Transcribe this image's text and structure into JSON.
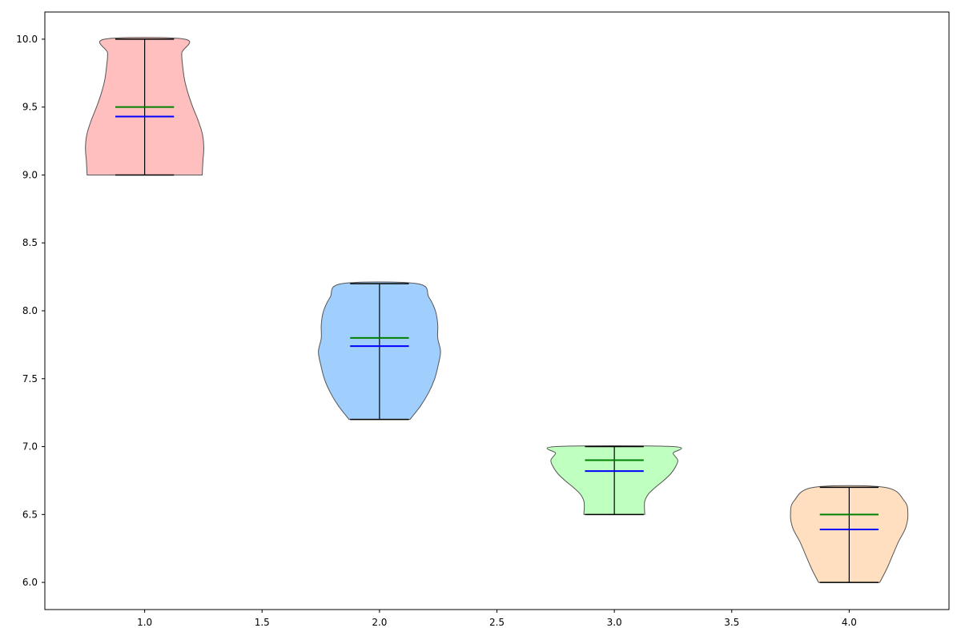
{
  "chart_data": {
    "type": "violin",
    "title": "",
    "xlabel": "",
    "ylabel": "",
    "xlim": [
      0.575,
      4.425
    ],
    "ylim": [
      5.8,
      10.2
    ],
    "grid": false,
    "legend": null,
    "x_ticks": [
      "1.0",
      "1.5",
      "2.0",
      "2.5",
      "3.0",
      "3.5",
      "4.0"
    ],
    "y_ticks": [
      "6.0",
      "6.5",
      "7.0",
      "7.5",
      "8.0",
      "8.5",
      "9.0",
      "9.5",
      "10.0"
    ],
    "cap_half_width": 0.125,
    "line_colors": {
      "extrema": "#000000",
      "median": "#008000",
      "mean": "#0000ff",
      "outline": "#555555"
    },
    "series": [
      {
        "position": 1,
        "color": "#ffbfbf",
        "min": 9.0,
        "max": 10.0,
        "median": 9.5,
        "mean": 9.43,
        "profile": [
          [
            9.0,
            0.245
          ],
          [
            9.1,
            0.248
          ],
          [
            9.2,
            0.252
          ],
          [
            9.3,
            0.246
          ],
          [
            9.4,
            0.228
          ],
          [
            9.5,
            0.205
          ],
          [
            9.6,
            0.185
          ],
          [
            9.7,
            0.17
          ],
          [
            9.8,
            0.162
          ],
          [
            9.9,
            0.158
          ],
          [
            10.0,
            0.17
          ]
        ]
      },
      {
        "position": 2,
        "color": "#a1cffd",
        "min": 7.2,
        "max": 8.2,
        "median": 7.8,
        "mean": 7.74,
        "profile": [
          [
            7.2,
            0.13
          ],
          [
            7.3,
            0.175
          ],
          [
            7.4,
            0.21
          ],
          [
            7.5,
            0.235
          ],
          [
            7.6,
            0.25
          ],
          [
            7.7,
            0.26
          ],
          [
            7.8,
            0.248
          ],
          [
            7.9,
            0.248
          ],
          [
            8.0,
            0.238
          ],
          [
            8.1,
            0.21
          ],
          [
            8.2,
            0.16
          ]
        ]
      },
      {
        "position": 3,
        "color": "#bfffbf",
        "min": 6.5,
        "max": 7.0,
        "median": 6.9,
        "mean": 6.82,
        "profile": [
          [
            6.5,
            0.13
          ],
          [
            6.55,
            0.128
          ],
          [
            6.6,
            0.13
          ],
          [
            6.65,
            0.145
          ],
          [
            6.7,
            0.175
          ],
          [
            6.75,
            0.21
          ],
          [
            6.8,
            0.24
          ],
          [
            6.85,
            0.26
          ],
          [
            6.9,
            0.27
          ],
          [
            6.95,
            0.25
          ],
          [
            7.0,
            0.25
          ]
        ]
      },
      {
        "position": 4,
        "color": "#ffdfbf",
        "min": 6.0,
        "max": 6.7,
        "median": 6.5,
        "mean": 6.39,
        "profile": [
          [
            6.0,
            0.13
          ],
          [
            6.1,
            0.16
          ],
          [
            6.2,
            0.185
          ],
          [
            6.3,
            0.21
          ],
          [
            6.4,
            0.24
          ],
          [
            6.5,
            0.25
          ],
          [
            6.6,
            0.235
          ],
          [
            6.7,
            0.15
          ]
        ]
      }
    ]
  }
}
